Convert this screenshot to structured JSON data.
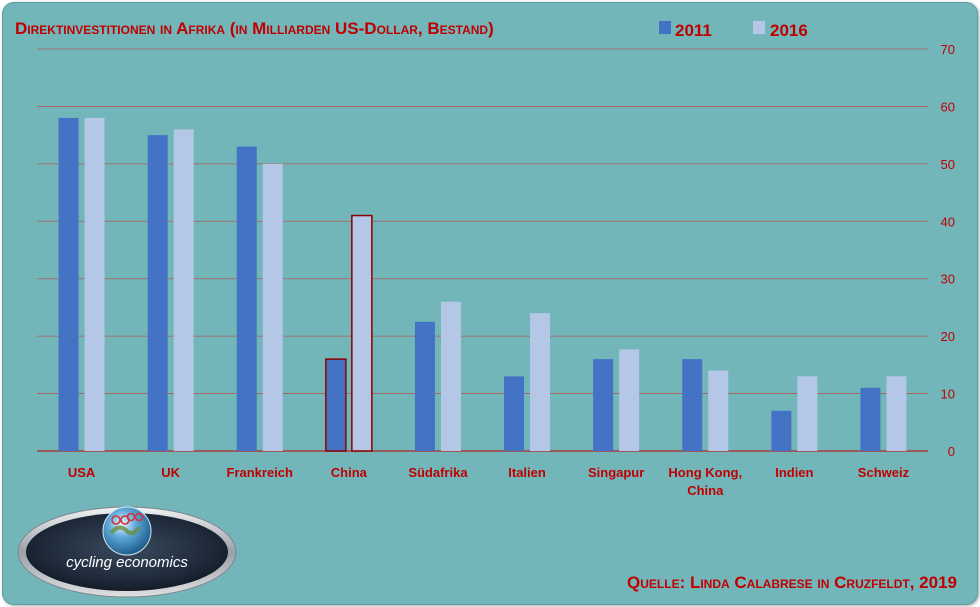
{
  "chart_data": {
    "type": "bar",
    "title": "Direktinvestitionen in Afrika (in Milliarden US-Dollar, Bestand)",
    "source": "Quelle: Linda Calabrese in Cruzfeldt, 2019",
    "categories": [
      "USA",
      "UK",
      "Frankreich",
      "China",
      "Südafrika",
      "Italien",
      "Singapur",
      "Hong Kong, China",
      "Indien",
      "Schweiz"
    ],
    "series": [
      {
        "name": "2011",
        "values": [
          58,
          55,
          53,
          16,
          22.5,
          13,
          16,
          16,
          7,
          11
        ]
      },
      {
        "name": "2016",
        "values": [
          58,
          56,
          50,
          41,
          26,
          24,
          17.7,
          14,
          13,
          13
        ]
      }
    ],
    "ylim": [
      0,
      70
    ],
    "yticks": [
      0,
      10,
      20,
      30,
      40,
      50,
      60,
      70
    ],
    "y_axis_side": "right",
    "grid": true,
    "legend_position": "top",
    "highlight_category": "China",
    "colors": {
      "background": "#72b6ba",
      "series_2011": "#4472c4",
      "series_2016": "#b4c7e7",
      "text": "#c00000",
      "grid": "#b05a5a",
      "highlight_border": "#8b0000"
    }
  },
  "logo": {
    "text": "cycling economics",
    "icon": "globe-cyclists-icon"
  }
}
